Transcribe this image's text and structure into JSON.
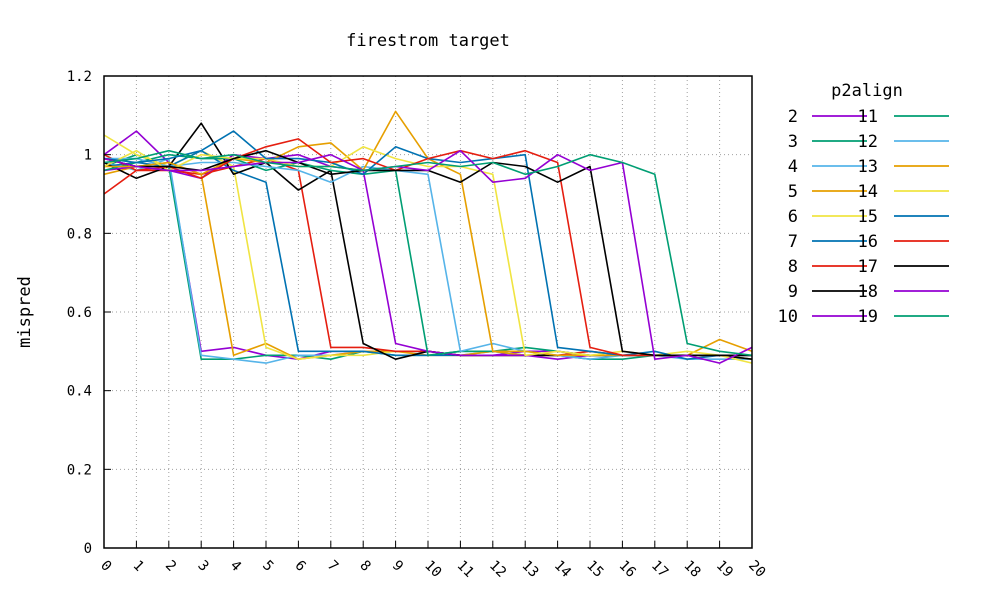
{
  "chart_data": {
    "type": "line",
    "title": "firestrom target",
    "xlabel": "",
    "ylabel": "mispred",
    "xlim": [
      0,
      20
    ],
    "ylim": [
      0,
      1.2
    ],
    "x": [
      0,
      1,
      2,
      3,
      4,
      5,
      6,
      7,
      8,
      9,
      10,
      11,
      12,
      13,
      14,
      15,
      16,
      17,
      18,
      19,
      20
    ],
    "x_ticks": [
      "0",
      "1",
      "2",
      "3",
      "4",
      "5",
      "6",
      "7",
      "8",
      "9",
      "10",
      "11",
      "12",
      "13",
      "14",
      "15",
      "16",
      "17",
      "18",
      "19",
      "20"
    ],
    "y_ticks": [
      "0",
      "0.2",
      "0.4",
      "0.6",
      "0.8",
      "1",
      "1.2"
    ],
    "grid": true,
    "legend": {
      "title": "p2align",
      "placement": "right"
    },
    "series": [
      {
        "name": "2",
        "color": "#9400d3",
        "values": [
          1.0,
          1.06,
          0.98,
          0.5,
          0.51,
          0.49,
          0.48,
          0.5,
          0.5,
          0.5,
          0.5,
          0.49,
          0.49,
          0.5,
          0.5,
          0.49,
          0.49,
          0.49,
          0.49,
          0.49,
          0.49
        ]
      },
      {
        "name": "3",
        "color": "#009e73",
        "values": [
          0.97,
          1.0,
          0.97,
          0.48,
          0.48,
          0.49,
          0.49,
          0.48,
          0.5,
          0.49,
          0.49,
          0.5,
          0.5,
          0.49,
          0.49,
          0.48,
          0.48,
          0.49,
          0.49,
          0.49,
          0.48
        ]
      },
      {
        "name": "4",
        "color": "#56b4e9",
        "values": [
          0.98,
          0.96,
          0.99,
          0.49,
          0.48,
          0.47,
          0.49,
          0.49,
          0.5,
          0.5,
          0.5,
          0.49,
          0.5,
          0.49,
          0.49,
          0.49,
          0.49,
          0.49,
          0.48,
          0.48,
          0.48
        ]
      },
      {
        "name": "5",
        "color": "#e69f00",
        "values": [
          0.95,
          0.97,
          0.98,
          0.95,
          0.49,
          0.52,
          0.48,
          0.49,
          0.5,
          0.5,
          0.49,
          0.49,
          0.5,
          0.49,
          0.49,
          0.49,
          0.49,
          0.49,
          0.49,
          0.49,
          0.49
        ]
      },
      {
        "name": "6",
        "color": "#f0e442",
        "values": [
          1.05,
          1.0,
          0.97,
          1.01,
          0.97,
          0.51,
          0.48,
          0.49,
          0.49,
          0.5,
          0.5,
          0.49,
          0.49,
          0.49,
          0.49,
          0.49,
          0.49,
          0.49,
          0.49,
          0.49,
          0.48
        ]
      },
      {
        "name": "7",
        "color": "#0072b2",
        "values": [
          0.97,
          0.98,
          0.97,
          1.01,
          0.96,
          0.93,
          0.5,
          0.5,
          0.5,
          0.49,
          0.49,
          0.49,
          0.49,
          0.49,
          0.49,
          0.49,
          0.49,
          0.49,
          0.49,
          0.49,
          0.49
        ]
      },
      {
        "name": "8",
        "color": "#e51e10",
        "values": [
          1.0,
          0.96,
          0.96,
          0.95,
          0.97,
          0.99,
          0.96,
          0.51,
          0.51,
          0.5,
          0.5,
          0.49,
          0.49,
          0.49,
          0.49,
          0.5,
          0.49,
          0.49,
          0.49,
          0.49,
          0.49
        ]
      },
      {
        "name": "9",
        "color": "#000000",
        "values": [
          0.98,
          0.94,
          0.97,
          1.08,
          0.95,
          0.98,
          0.91,
          0.96,
          0.52,
          0.48,
          0.5,
          0.49,
          0.49,
          0.49,
          0.49,
          0.49,
          0.49,
          0.49,
          0.49,
          0.49,
          0.48
        ]
      },
      {
        "name": "10",
        "color": "#9400d3",
        "values": [
          0.96,
          0.97,
          0.96,
          0.94,
          1.0,
          0.99,
          1.0,
          0.97,
          0.96,
          0.52,
          0.5,
          0.49,
          0.49,
          0.49,
          0.48,
          0.49,
          0.49,
          0.49,
          0.49,
          0.49,
          0.49
        ]
      },
      {
        "name": "11",
        "color": "#009e73",
        "values": [
          0.96,
          0.98,
          1.0,
          0.99,
          0.99,
          0.96,
          0.98,
          0.96,
          0.95,
          0.96,
          0.49,
          0.5,
          0.5,
          0.51,
          0.5,
          0.49,
          0.49,
          0.49,
          0.49,
          0.49,
          0.49
        ]
      },
      {
        "name": "12",
        "color": "#56b4e9",
        "values": [
          0.99,
          0.99,
          0.97,
          0.98,
          0.98,
          0.97,
          0.96,
          0.93,
          0.97,
          0.96,
          0.95,
          0.5,
          0.52,
          0.5,
          0.49,
          0.48,
          0.49,
          0.49,
          0.49,
          0.49,
          0.49
        ]
      },
      {
        "name": "13",
        "color": "#e69f00",
        "values": [
          0.97,
          0.97,
          0.98,
          0.95,
          0.99,
          0.98,
          1.02,
          1.03,
          0.96,
          1.11,
          0.99,
          0.95,
          0.5,
          0.5,
          0.49,
          0.49,
          0.49,
          0.49,
          0.49,
          0.53,
          0.5
        ]
      },
      {
        "name": "14",
        "color": "#f0e442",
        "values": [
          0.97,
          1.01,
          0.96,
          1.0,
          0.99,
          0.99,
          0.97,
          0.97,
          1.02,
          0.99,
          0.97,
          0.97,
          0.95,
          0.49,
          0.5,
          0.49,
          0.5,
          0.49,
          0.5,
          0.49,
          0.47
        ]
      },
      {
        "name": "15",
        "color": "#0072b2",
        "values": [
          0.99,
          0.98,
          0.99,
          1.01,
          1.06,
          0.99,
          0.99,
          0.98,
          0.95,
          1.02,
          0.99,
          0.98,
          0.99,
          1.0,
          0.51,
          0.5,
          0.49,
          0.5,
          0.48,
          0.49,
          0.49
        ]
      },
      {
        "name": "16",
        "color": "#e51e10",
        "values": [
          0.9,
          0.96,
          0.97,
          0.94,
          0.99,
          1.02,
          1.04,
          0.98,
          0.99,
          0.96,
          0.99,
          1.01,
          0.99,
          1.01,
          0.98,
          0.51,
          0.49,
          0.49,
          0.49,
          0.49,
          0.49
        ]
      },
      {
        "name": "17",
        "color": "#000000",
        "values": [
          0.99,
          0.97,
          0.97,
          0.96,
          0.99,
          1.01,
          0.98,
          0.95,
          0.96,
          0.96,
          0.96,
          0.93,
          0.98,
          0.97,
          0.93,
          0.97,
          0.5,
          0.49,
          0.49,
          0.49,
          0.49
        ]
      },
      {
        "name": "18",
        "color": "#9400d3",
        "values": [
          0.99,
          0.97,
          0.96,
          0.96,
          0.97,
          0.98,
          0.98,
          1.0,
          0.96,
          0.97,
          0.96,
          1.01,
          0.93,
          0.94,
          1.0,
          0.96,
          0.98,
          0.48,
          0.49,
          0.47,
          0.51
        ]
      },
      {
        "name": "19",
        "color": "#009e73",
        "values": [
          0.98,
          0.99,
          1.01,
          0.99,
          1.0,
          0.98,
          0.97,
          0.97,
          0.96,
          0.97,
          0.98,
          0.97,
          0.98,
          0.95,
          0.97,
          1.0,
          0.98,
          0.95,
          0.52,
          0.5,
          0.49
        ]
      }
    ]
  }
}
